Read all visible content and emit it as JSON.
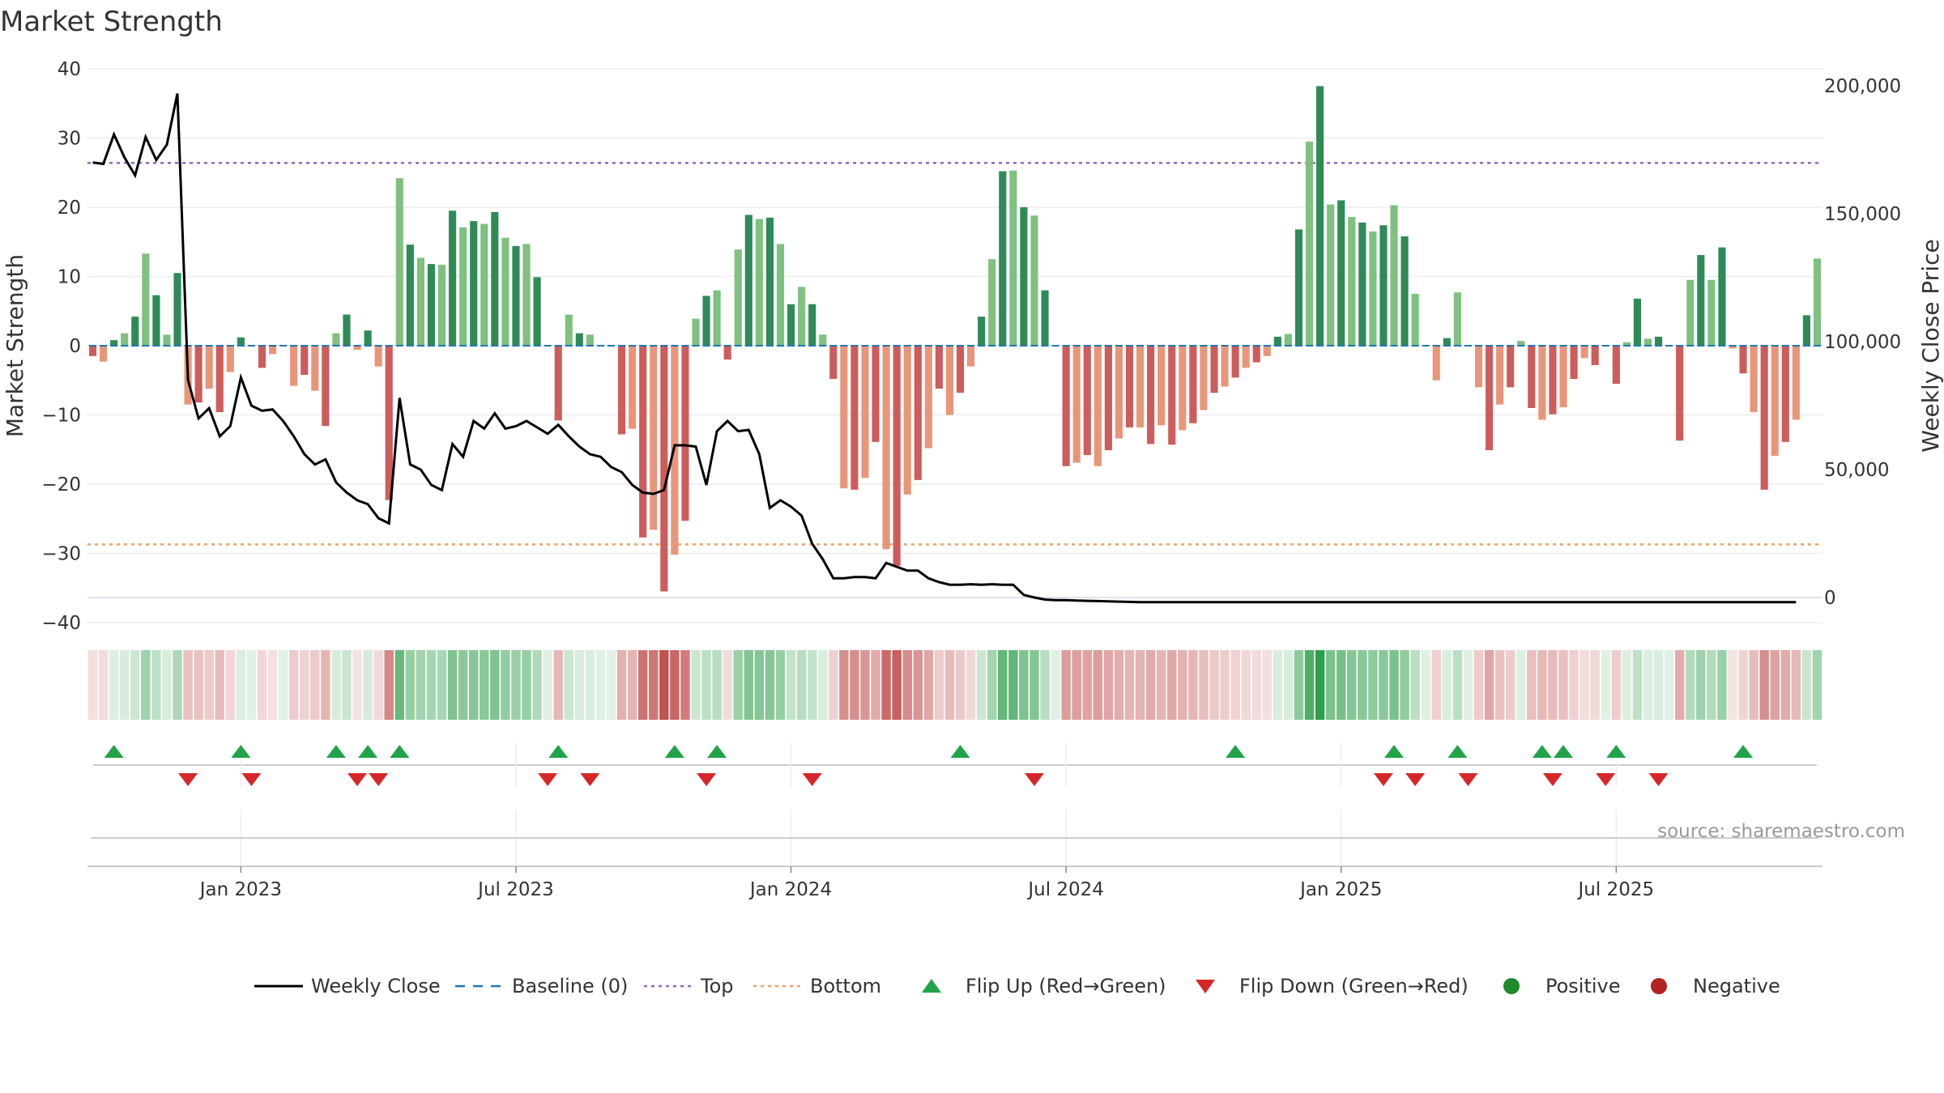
{
  "chart_data": {
    "type": "bar",
    "title": "Market Strength",
    "ylabel": "Market Strength",
    "y2label": "Weekly Close Price",
    "ylim": [
      -40,
      40
    ],
    "y2lim": [
      0,
      200000
    ],
    "yticks": [
      40,
      30,
      20,
      10,
      0,
      -10,
      -20,
      -30,
      -40
    ],
    "y2ticks": [
      "200,000",
      "150,000",
      "100,000",
      "50,000",
      "0"
    ],
    "y2tick_values": [
      200000,
      150000,
      100000,
      50000,
      0
    ],
    "top_level": 26.4,
    "bottom_level": -28.7,
    "xticks": [
      "Jan 2023",
      "Jul 2023",
      "Jan 2024",
      "Jul 2024",
      "Jan 2025",
      "Jul 2025"
    ],
    "xtick_weeks": [
      14.5,
      40.5,
      66.5,
      92.5,
      118.5,
      144.5
    ],
    "source": "source: sharemaestro.com",
    "grid": true,
    "legend_position": "bottom",
    "legend": [
      {
        "label": "Weekly Close",
        "style": "line",
        "color": "#000000"
      },
      {
        "label": "Baseline (0)",
        "style": "dashed",
        "color": "#1f77b4"
      },
      {
        "label": "Top",
        "style": "dotted",
        "color": "#9467bd"
      },
      {
        "label": "Bottom",
        "style": "dotted",
        "color": "#f0a060"
      },
      {
        "label": "Flip Up (Red→Green)",
        "style": "triangle-up",
        "color": "#22a34a"
      },
      {
        "label": "Flip Down (Green→Red)",
        "style": "triangle-down",
        "color": "#d62728"
      },
      {
        "label": "Positive",
        "style": "circle",
        "color": "#1f8a2a"
      },
      {
        "label": "Negative",
        "style": "circle",
        "color": "#b22222"
      }
    ],
    "colors": {
      "pos_strong": "#2e8b57",
      "pos_light": "#80c080",
      "neg_strong": "#cd5c5c",
      "neg_light": "#e8967a",
      "line": "#000000",
      "top": "#9467bd",
      "bottom": "#f0a060",
      "flip_up": "#22a34a",
      "flip_down": "#d62728"
    },
    "strength": [
      -1.5,
      -2.3,
      0.8,
      1.8,
      4.2,
      13.3,
      7.3,
      1.6,
      10.5,
      -8.5,
      -8.2,
      -6.2,
      -9.6,
      -3.8,
      1.2,
      0,
      -3.2,
      -1.2,
      0,
      -5.8,
      -4.2,
      -6.5,
      -11.6,
      1.8,
      4.5,
      -0.6,
      2.2,
      -3.0,
      -22.3,
      24.2,
      14.6,
      12.7,
      11.8,
      11.7,
      19.5,
      17.1,
      18.0,
      17.6,
      19.3,
      15.6,
      14.4,
      14.7,
      9.9,
      0,
      -10.8,
      4.5,
      1.8,
      1.6,
      0,
      0,
      -12.8,
      -12.0,
      -27.7,
      -26.6,
      -35.5,
      -30.2,
      -25.3,
      3.9,
      7.2,
      8.0,
      -2.0,
      13.9,
      18.9,
      18.3,
      18.5,
      14.7,
      6.0,
      8.5,
      6.0,
      1.6,
      -4.8,
      -20.6,
      -20.8,
      -19.1,
      -13.9,
      -29.4,
      -31.8,
      -21.5,
      -19.4,
      -14.8,
      -6.2,
      -10.0,
      -6.8,
      -3.0,
      4.2,
      12.5,
      25.2,
      25.3,
      20.0,
      18.8,
      8.0,
      0,
      -17.4,
      -16.9,
      -15.8,
      -17.4,
      -15.1,
      -13.4,
      -11.8,
      -11.8,
      -14.2,
      -11.5,
      -14.3,
      -12.2,
      -11.2,
      -9.3,
      -6.8,
      -5.9,
      -4.6,
      -3.2,
      -2.4,
      -1.5,
      1.3,
      1.7,
      16.8,
      29.5,
      37.5,
      20.4,
      21.0,
      18.6,
      17.8,
      16.5,
      17.4,
      20.3,
      15.8,
      7.5,
      0,
      -5.0,
      1.1,
      7.7,
      0,
      -6.0,
      -15.1,
      -8.5,
      -6.0,
      0.7,
      -9.0,
      -10.7,
      -9.9,
      -8.9,
      -4.8,
      -1.8,
      -2.8,
      0,
      -5.5,
      0.5,
      6.8,
      1.0,
      1.3,
      0,
      -13.7,
      9.5,
      13.1,
      9.5,
      14.2,
      -0.4,
      -4.0,
      -9.6,
      -20.8,
      -15.9,
      -13.9,
      -10.7,
      4.4,
      12.6
    ],
    "close": [
      170000,
      169500,
      181000,
      172000,
      165000,
      180000,
      171000,
      177000,
      197000,
      85000,
      70000,
      74000,
      63000,
      67000,
      86000,
      75000,
      73000,
      73500,
      69000,
      63000,
      56000,
      52000,
      54000,
      45000,
      41000,
      38000,
      36500,
      31000,
      29000,
      78000,
      52000,
      50000,
      44000,
      42000,
      60000,
      55000,
      69000,
      66000,
      72000,
      66000,
      67000,
      69000,
      66500,
      64000,
      67500,
      63000,
      59000,
      56000,
      55000,
      51000,
      49000,
      44000,
      41000,
      40500,
      42000,
      59500,
      59500,
      59000,
      44000,
      65000,
      69000,
      65000,
      65500,
      56000,
      35000,
      38000,
      35500,
      32000,
      21000,
      15000,
      7500,
      7500,
      8000,
      8000,
      7500,
      13500,
      12000,
      10500,
      10500,
      7500,
      6000,
      5000,
      5000,
      5200,
      5000,
      5200,
      5000,
      5000,
      1000,
      0,
      -800,
      -1000,
      -1000,
      -1200,
      -1300,
      -1400,
      -1500,
      -1600,
      -1700,
      -1800,
      -1800,
      -1800,
      -1800,
      -1800,
      -1800,
      -1800,
      -1800,
      -1800,
      -1800,
      -1800,
      -1800,
      -1800,
      -1800,
      -1800,
      -1800,
      -1800,
      -1800,
      -1800,
      -1800,
      -1800,
      -1800,
      -1800,
      -1800,
      -1800,
      -1800,
      -1800,
      -1800,
      -1800,
      -1800,
      -1800,
      -1800,
      -1800,
      -1800,
      -1800,
      -1800,
      -1800,
      -1800,
      -1800,
      -1800,
      -1800,
      -1800,
      -1800,
      -1800,
      -1800,
      -1800,
      -1800,
      -1800,
      -1800,
      -1800,
      -1800,
      -1800,
      -1800,
      -1800,
      -1800,
      -1800,
      -1800,
      -1800,
      -1800,
      -1800,
      -1800,
      -1800,
      -1800
    ],
    "flip_up_weeks": [
      2,
      14,
      23,
      26,
      29,
      44,
      55,
      59,
      82,
      108,
      123,
      129,
      137,
      139,
      144,
      156
    ],
    "flip_down_weeks": [
      9,
      15,
      25,
      27,
      43,
      47,
      58,
      68,
      89,
      122,
      125,
      130,
      138,
      143,
      148
    ]
  }
}
